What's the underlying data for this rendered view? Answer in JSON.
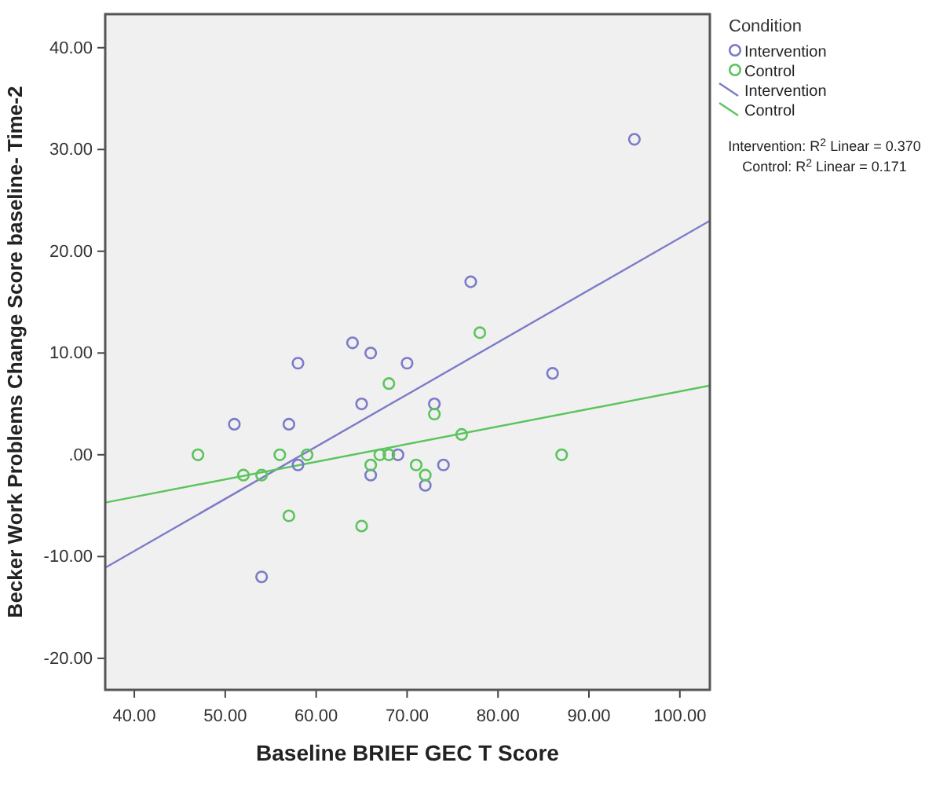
{
  "chart_data": {
    "type": "scatter",
    "xlabel": "Baseline BRIEF GEC T Score",
    "ylabel": "Becker Work Problems Change Score baseline- Time-2",
    "legend_title": "Condition",
    "legend": "right",
    "grid": false,
    "xlim": [
      36.8,
      103.3
    ],
    "ylim": [
      -23.1,
      43.3
    ],
    "xticks": [
      {
        "value": 40,
        "label": "40.00"
      },
      {
        "value": 50,
        "label": "50.00"
      },
      {
        "value": 60,
        "label": "60.00"
      },
      {
        "value": 70,
        "label": "70.00"
      },
      {
        "value": 80,
        "label": "80.00"
      },
      {
        "value": 90,
        "label": "90.00"
      },
      {
        "value": 100,
        "label": "100.00"
      }
    ],
    "yticks": [
      {
        "value": -20,
        "label": "-20.00"
      },
      {
        "value": -10,
        "label": "-10.00"
      },
      {
        "value": 0,
        "label": ".00"
      },
      {
        "value": 10,
        "label": "10.00"
      },
      {
        "value": 20,
        "label": "20.00"
      },
      {
        "value": 30,
        "label": "30.00"
      },
      {
        "value": 40,
        "label": "40.00"
      }
    ],
    "series": [
      {
        "name": "Intervention",
        "color": "#7b7bc9",
        "x": [
          95,
          77,
          64,
          66,
          58,
          70,
          86,
          65,
          73,
          51,
          57,
          69,
          58,
          74,
          66,
          72,
          54
        ],
        "values": [
          31,
          17,
          11,
          10,
          9,
          9,
          8,
          5,
          5,
          3,
          3,
          0,
          -1,
          -1,
          -2,
          -3,
          -12
        ]
      },
      {
        "name": "Control",
        "color": "#5cc45c",
        "x": [
          78,
          68,
          73,
          76,
          47,
          56,
          59,
          67,
          68,
          87,
          66,
          71,
          52,
          54,
          72,
          57,
          65
        ],
        "values": [
          12,
          7,
          4,
          2,
          0,
          0,
          0,
          0,
          0,
          0,
          -1,
          -1,
          -2,
          -2,
          -2,
          -6,
          -7
        ]
      },
      {
        "name": "Intervention",
        "type": "line",
        "color": "#7b7bc9",
        "x": [
          36.8,
          103.3
        ],
        "values": [
          -11.1,
          23.0
        ]
      },
      {
        "name": "Control",
        "type": "line",
        "color": "#5cc45c",
        "x": [
          36.8,
          103.3
        ],
        "values": [
          -4.7,
          6.8
        ]
      }
    ],
    "annotations": [
      "Intervention: R$^{2}$ Linear = 0.370",
      "Control: R$^{2}$ Linear = 0.171"
    ]
  }
}
